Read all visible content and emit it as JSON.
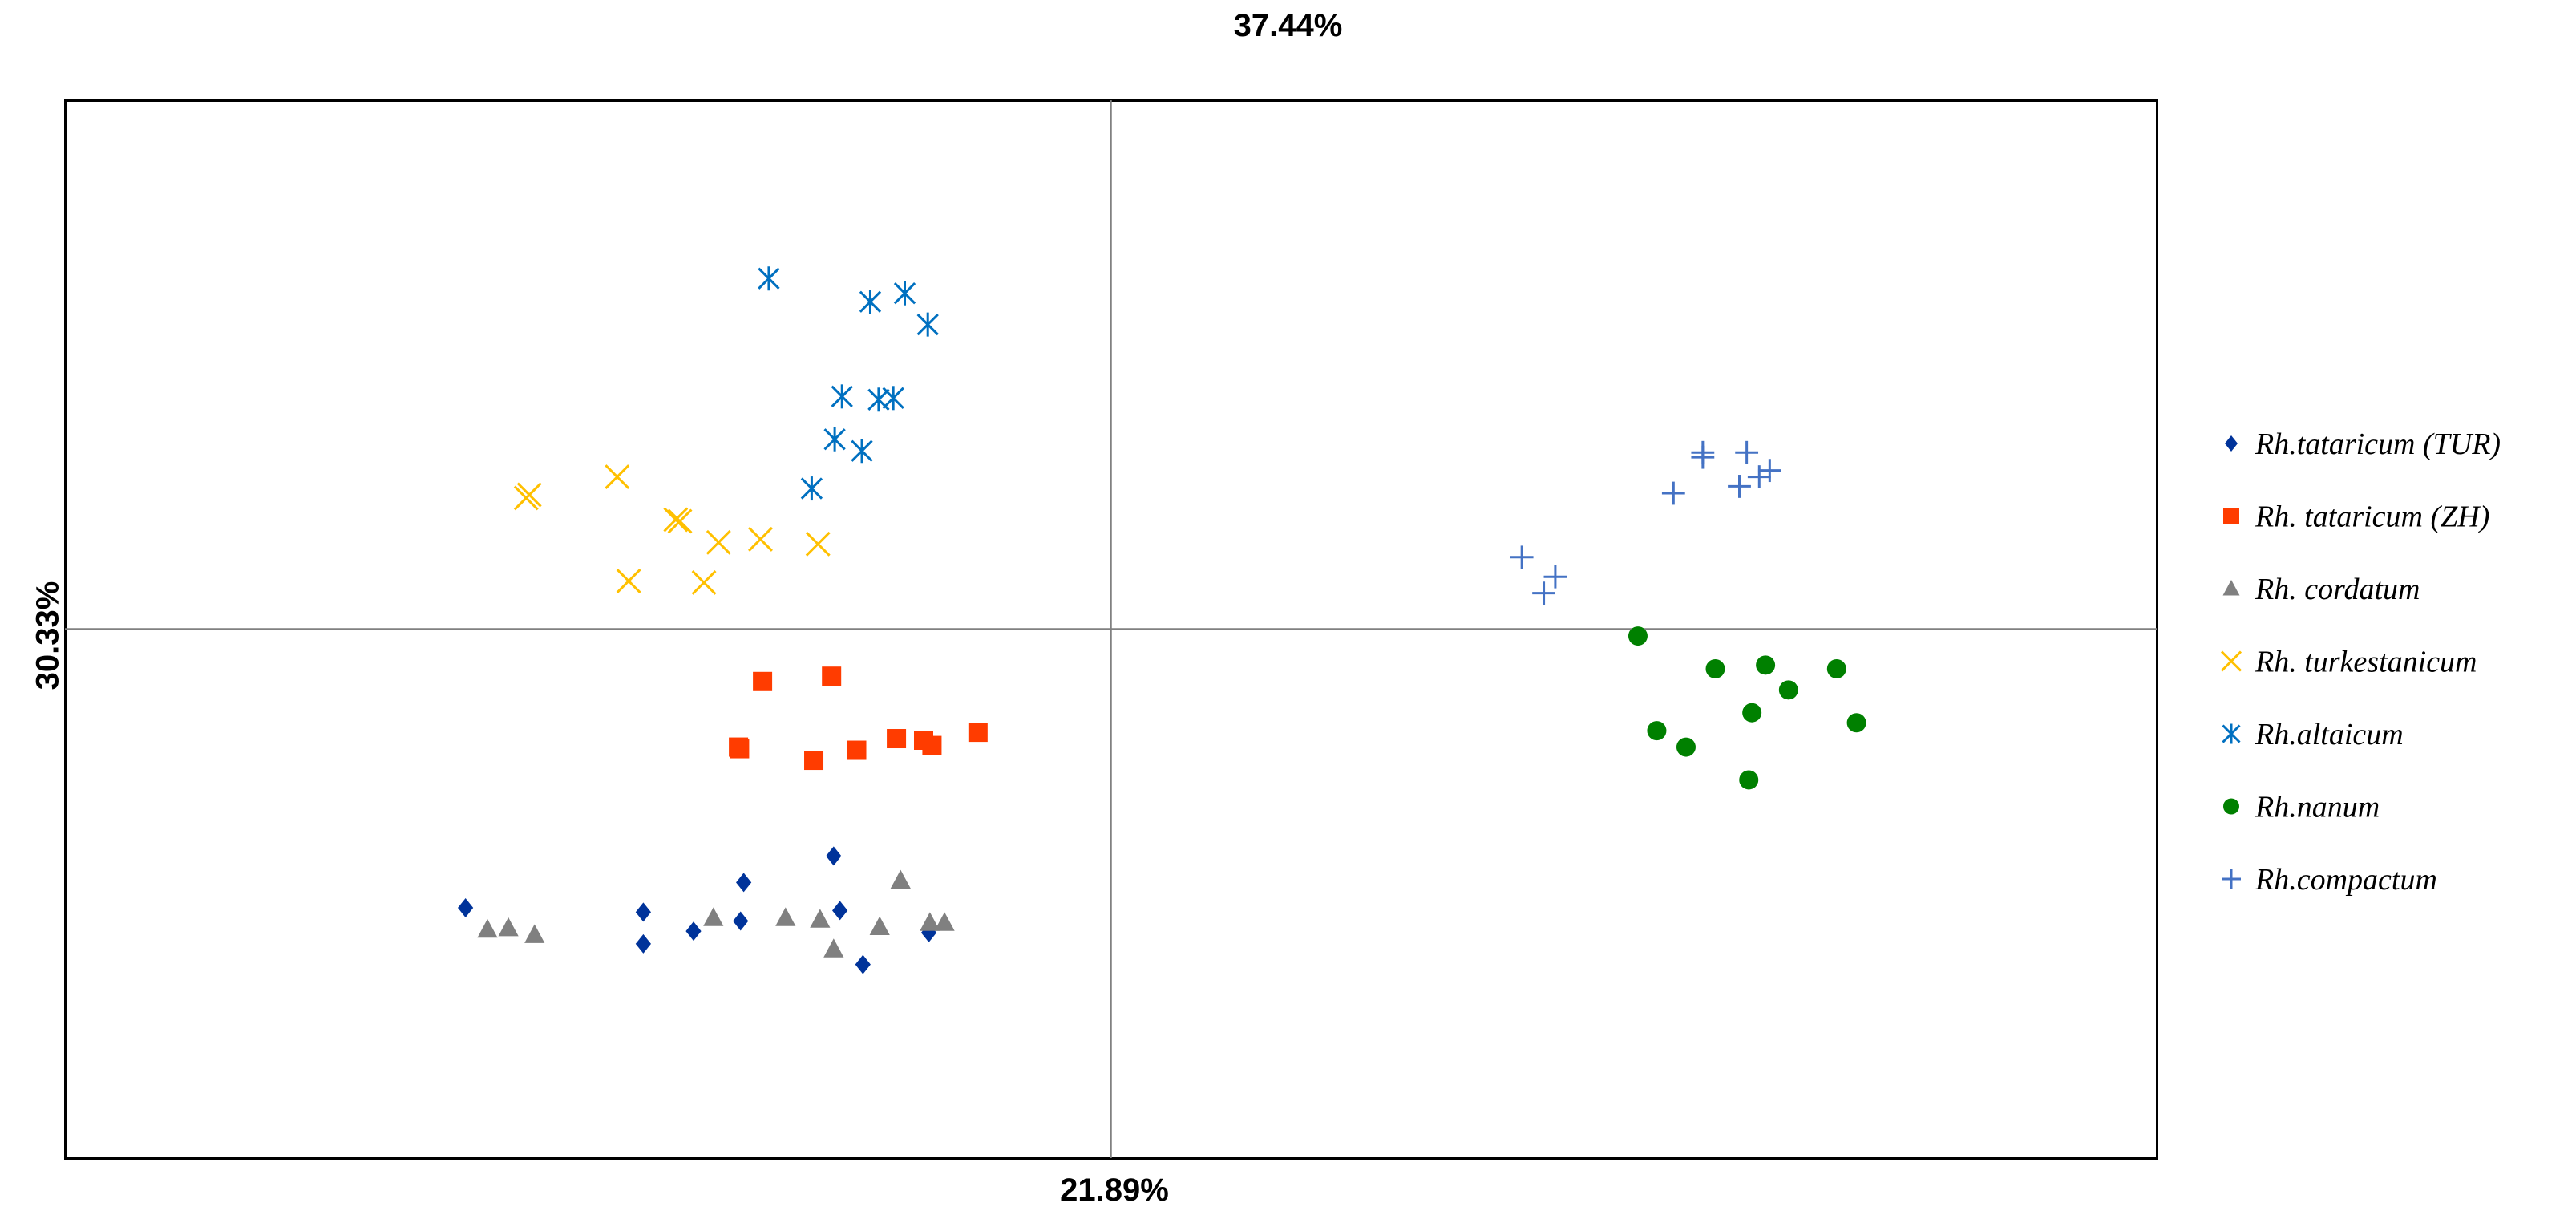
{
  "chart_data": {
    "type": "scatter",
    "title": "37.44%",
    "xlabel": "21.89%",
    "ylabel": "30.33%",
    "xlim": [
      -1,
      1
    ],
    "ylim": [
      -1,
      1
    ],
    "grid": false,
    "legend_position": "right",
    "series": [
      {
        "name": "Rh.tataricum (TUR)",
        "marker": "diamond",
        "color": "#00339a",
        "points": [
          [
            -0.617,
            -0.527
          ],
          [
            -0.447,
            -0.535
          ],
          [
            -0.447,
            -0.595
          ],
          [
            -0.399,
            -0.571
          ],
          [
            -0.351,
            -0.479
          ],
          [
            -0.354,
            -0.552
          ],
          [
            -0.265,
            -0.429
          ],
          [
            -0.259,
            -0.532
          ],
          [
            -0.237,
            -0.634
          ],
          [
            -0.174,
            -0.574
          ]
        ]
      },
      {
        "name": "Rh. tataricum (ZH)",
        "marker": "square",
        "color": "#ff3c00",
        "points": [
          [
            -0.333,
            -0.099
          ],
          [
            -0.267,
            -0.089
          ],
          [
            -0.356,
            -0.223
          ],
          [
            -0.355,
            -0.226
          ],
          [
            -0.284,
            -0.248
          ],
          [
            -0.243,
            -0.229
          ],
          [
            -0.205,
            -0.207
          ],
          [
            -0.179,
            -0.21
          ],
          [
            -0.171,
            -0.22
          ],
          [
            -0.127,
            -0.195
          ]
        ]
      },
      {
        "name": "Rh. cordatum",
        "marker": "triangle",
        "color": "#808080",
        "points": [
          [
            -0.596,
            -0.568
          ],
          [
            -0.576,
            -0.565
          ],
          [
            -0.551,
            -0.578
          ],
          [
            -0.38,
            -0.546
          ],
          [
            -0.311,
            -0.546
          ],
          [
            -0.278,
            -0.549
          ],
          [
            -0.265,
            -0.605
          ],
          [
            -0.221,
            -0.563
          ],
          [
            -0.201,
            -0.475
          ],
          [
            -0.173,
            -0.555
          ],
          [
            -0.159,
            -0.555
          ]
        ]
      },
      {
        "name": "Rh. turkestanicum",
        "marker": "x",
        "color": "#ffc000",
        "points": [
          [
            -0.559,
            0.248
          ],
          [
            -0.556,
            0.254
          ],
          [
            -0.472,
            0.288
          ],
          [
            -0.416,
            0.207
          ],
          [
            -0.412,
            0.204
          ],
          [
            -0.375,
            0.164
          ],
          [
            -0.335,
            0.17
          ],
          [
            -0.28,
            0.161
          ],
          [
            -0.461,
            0.091
          ],
          [
            -0.389,
            0.088
          ]
        ]
      },
      {
        "name": "Rh.altaicum",
        "marker": "asterisk",
        "color": "#0070c0",
        "points": [
          [
            -0.327,
            0.663
          ],
          [
            -0.23,
            0.619
          ],
          [
            -0.197,
            0.635
          ],
          [
            -0.175,
            0.576
          ],
          [
            -0.257,
            0.44
          ],
          [
            -0.222,
            0.434
          ],
          [
            -0.208,
            0.437
          ],
          [
            -0.264,
            0.359
          ],
          [
            -0.238,
            0.337
          ],
          [
            -0.286,
            0.266
          ]
        ]
      },
      {
        "name": "Rh.nanum",
        "marker": "circle",
        "color": "#008000",
        "points": [
          [
            0.504,
            -0.013
          ],
          [
            0.578,
            -0.075
          ],
          [
            0.626,
            -0.068
          ],
          [
            0.648,
            -0.115
          ],
          [
            0.694,
            -0.075
          ],
          [
            0.713,
            -0.177
          ],
          [
            0.522,
            -0.192
          ],
          [
            0.55,
            -0.223
          ],
          [
            0.613,
            -0.158
          ],
          [
            0.61,
            -0.285
          ]
        ]
      },
      {
        "name": "Rh.compactum",
        "marker": "plus",
        "color": "#4472c4",
        "points": [
          [
            0.393,
            0.136
          ],
          [
            0.414,
            0.068
          ],
          [
            0.425,
            0.099
          ],
          [
            0.566,
            0.334
          ],
          [
            0.566,
            0.325
          ],
          [
            0.608,
            0.334
          ],
          [
            0.62,
            0.288
          ],
          [
            0.63,
            0.3
          ],
          [
            0.538,
            0.257
          ],
          [
            0.601,
            0.27
          ]
        ]
      }
    ]
  }
}
